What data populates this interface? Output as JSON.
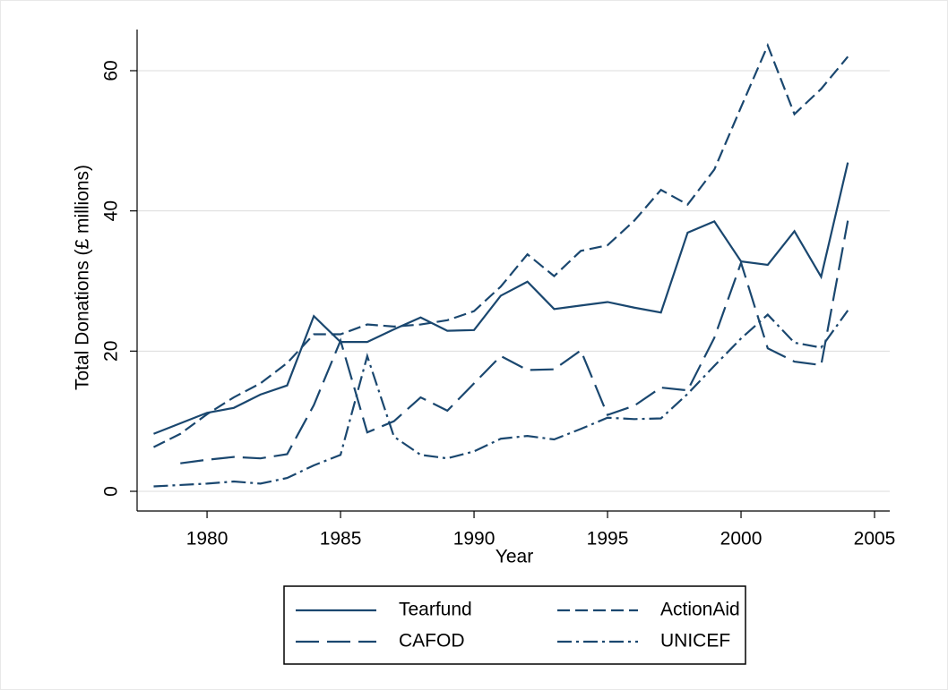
{
  "chart_data": {
    "type": "line",
    "x_label": "Year",
    "y_label": "Total Donations (£ millions)",
    "x": [
      1978,
      1979,
      1980,
      1981,
      1982,
      1983,
      1984,
      1985,
      1986,
      1987,
      1988,
      1989,
      1990,
      1991,
      1992,
      1993,
      1994,
      1995,
      1996,
      1997,
      1998,
      1999,
      2000,
      2001,
      2002,
      2003,
      2004
    ],
    "series": [
      {
        "name": "Tearfund",
        "color": "#1a476f",
        "dash": "solid",
        "values": [
          8.2,
          9.7,
          11.2,
          11.9,
          13.8,
          15.1,
          25,
          21.3,
          21.3,
          23.1,
          24.8,
          22.9,
          23.0,
          27.9,
          29.9,
          26.0,
          26.5,
          27.0,
          26.2,
          25.5,
          36.9,
          38.5,
          32.8,
          32.3,
          37.1,
          30.6,
          46.9
        ]
      },
      {
        "name": "ActionAid",
        "color": "#1a476f",
        "dash": "dash",
        "values": [
          6.3,
          8.2,
          11.0,
          13.4,
          15.4,
          18.3,
          22.4,
          22.4,
          23.8,
          23.5,
          23.8,
          24.4,
          25.7,
          29.2,
          33.8,
          30.7,
          34.3,
          35.1,
          38.6,
          43.0,
          40.9,
          45.9,
          54.8,
          63.6,
          53.8,
          57.4,
          62.0
        ]
      },
      {
        "name": "CAFOD",
        "color": "#1a476f",
        "dash": "longdash",
        "values": [
          null,
          4.0,
          4.5,
          4.9,
          4.7,
          5.3,
          12.3,
          21.5,
          8.4,
          10.0,
          13.4,
          11.5,
          15.4,
          19.3,
          17.3,
          17.4,
          20.1,
          10.9,
          12.2,
          14.8,
          14.4,
          21.9,
          32.6,
          20.4,
          18.5,
          18.0,
          38.6
        ]
      },
      {
        "name": "UNICEF",
        "color": "#1a476f",
        "dash": "dashdot",
        "values": [
          0.7,
          0.9,
          1.1,
          1.4,
          1.1,
          1.9,
          3.7,
          5.2,
          19.3,
          7.8,
          5.2,
          4.7,
          5.7,
          7.5,
          7.9,
          7.4,
          8.9,
          10.5,
          10.3,
          10.4,
          13.9,
          17.9,
          21.8,
          25.2,
          21.2,
          20.5,
          25.8
        ]
      }
    ],
    "xlim": [
      1977.38,
      2005.57
    ],
    "ylim": [
      -2.81,
      65.87
    ],
    "xticks": [
      1980,
      1985,
      1990,
      1995,
      2000,
      2005
    ],
    "yticks": [
      0,
      20,
      40,
      60
    ],
    "grid": true,
    "legend": "bottom"
  }
}
